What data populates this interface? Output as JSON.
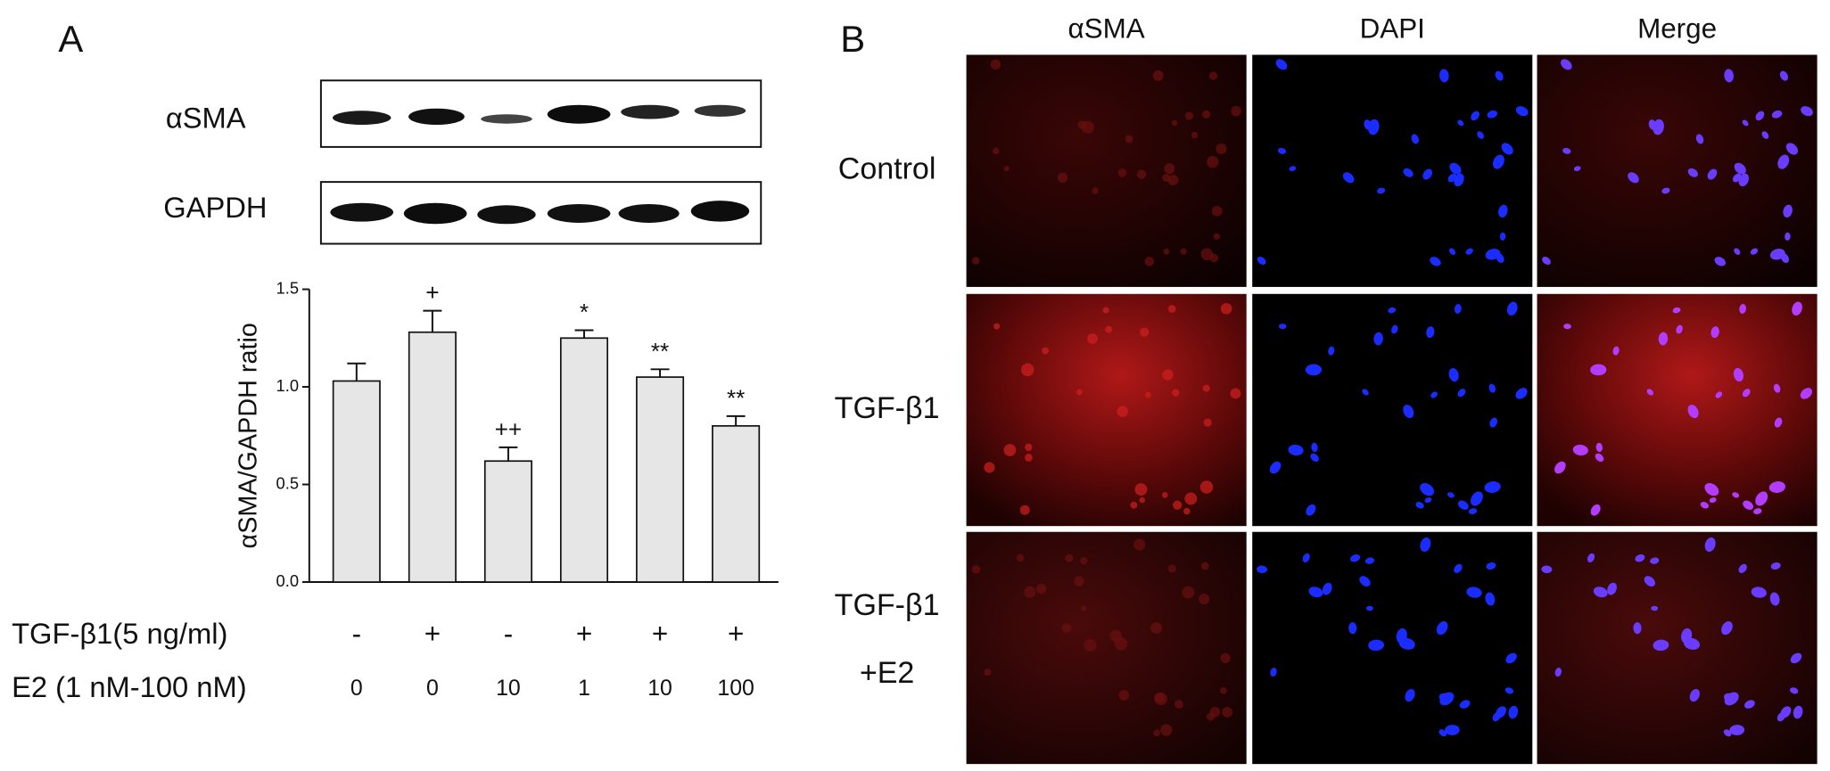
{
  "panel_a": {
    "label": "A",
    "blot_labels": [
      "αSMA",
      "GAPDH"
    ],
    "conditions": [
      {
        "name": "TGF-β1(5 ng/ml)",
        "values": [
          "-",
          "+",
          "-",
          "+",
          "+",
          "+"
        ]
      },
      {
        "name": "E2 (1 nM-100 nM)",
        "values": [
          0,
          0,
          10,
          1,
          10,
          100
        ]
      }
    ]
  },
  "chart_data": {
    "type": "bar",
    "ylabel": "αSMA/GAPDH ratio",
    "categories": [
      null,
      null,
      null,
      null,
      null,
      null
    ],
    "values": [
      1.03,
      1.28,
      0.62,
      1.25,
      1.05,
      0.8
    ],
    "errors": [
      0.09,
      0.11,
      0.07,
      0.04,
      0.04,
      0.05
    ],
    "annotations": [
      null,
      "+",
      "++",
      "*",
      "**",
      "**"
    ],
    "color": "#e6e6e6",
    "ylim": [
      0,
      1.5
    ],
    "yticks": [
      {
        "value": 0,
        "label": "0.0"
      },
      0.5,
      {
        "value": 1,
        "label": "1.0"
      },
      1.5
    ],
    "grid": false
  },
  "panel_b": {
    "label": "B",
    "column_headers": [
      "αSMA",
      "DAPI",
      "Merge"
    ],
    "row_labels": [
      [
        "Control"
      ],
      [
        "TGF-β1"
      ],
      [
        "TGF-β1",
        "+E2"
      ]
    ]
  }
}
